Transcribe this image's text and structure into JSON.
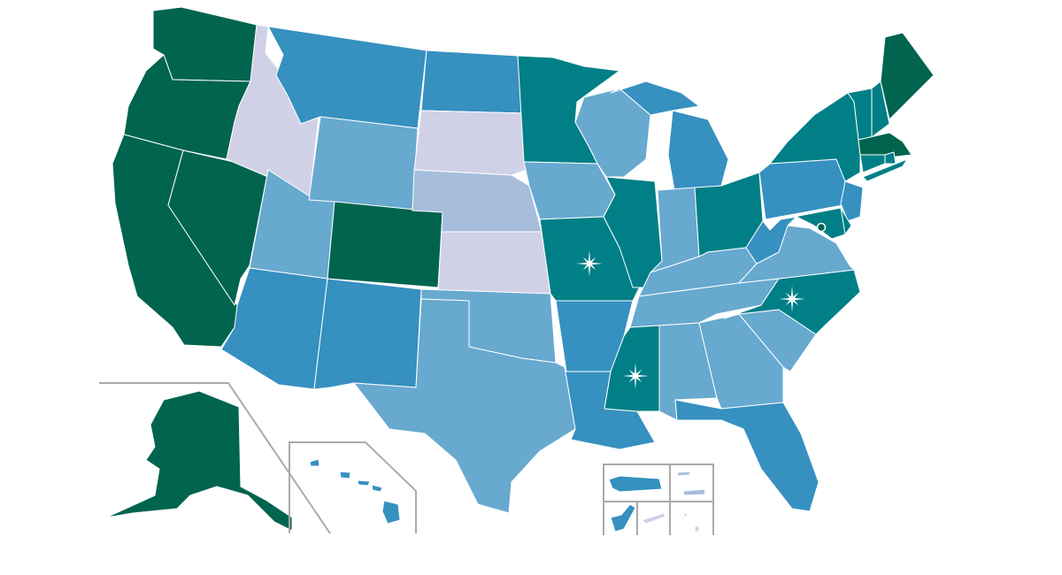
{
  "map": {
    "legend_palette": {
      "dark_green": "#00644f",
      "teal": "#007f86",
      "medium_blue": "#3690c0",
      "light_blue": "#67a9cf",
      "pale_blue": "#a6bddb",
      "lavender": "#d0d1e6"
    },
    "state_fills": {
      "WA": "#00644f",
      "OR": "#00644f",
      "CA": "#00644f",
      "NV": "#00644f",
      "CO": "#00644f",
      "ME": "#00644f",
      "MA": "#00644f",
      "AK": "#00644f",
      "DC": "#00644f",
      "MN": "#007f86",
      "MO": "#007f86",
      "IL": "#007f86",
      "OH": "#007f86",
      "MS": "#007f86",
      "NC": "#007f86",
      "NY": "#007f86",
      "VT": "#007f86",
      "NH": "#007f86",
      "CT": "#007f86",
      "RI": "#007f86",
      "MD": "#007f86",
      "DE": "#007f86",
      "MT": "#3690c0",
      "ND": "#3690c0",
      "AZ": "#3690c0",
      "NM": "#3690c0",
      "AR": "#3690c0",
      "LA": "#3690c0",
      "MI": "#3690c0",
      "WV": "#3690c0",
      "PA": "#3690c0",
      "NJ": "#3690c0",
      "FL": "#3690c0",
      "HI": "#3690c0",
      "PR": "#3690c0",
      "GU": "#3690c0",
      "WY": "#67a9cf",
      "UT": "#67a9cf",
      "TX": "#67a9cf",
      "OK": "#67a9cf",
      "IA": "#67a9cf",
      "WI": "#67a9cf",
      "IN": "#67a9cf",
      "KY": "#67a9cf",
      "TN": "#67a9cf",
      "AL": "#67a9cf",
      "GA": "#67a9cf",
      "SC": "#67a9cf",
      "VA": "#67a9cf",
      "NE": "#a6bddb",
      "VI": "#a6bddb",
      "ID": "#d0d1e6",
      "SD": "#d0d1e6",
      "KS": "#d0d1e6",
      "AS": "#d0d1e6",
      "MP": "#d0d1e6"
    },
    "marked_states": [
      "MO",
      "MS",
      "NC"
    ],
    "marker_color": "#ffffff",
    "inset_line_color": "#aaaaaa"
  }
}
